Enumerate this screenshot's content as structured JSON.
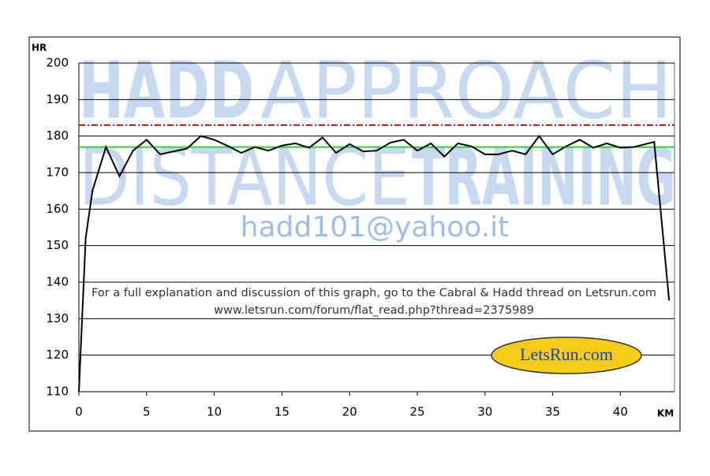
{
  "chart_data": {
    "type": "line",
    "y_label": "HR",
    "x_label": "KM",
    "x": [
      0,
      0.5,
      1,
      2,
      3,
      4,
      5,
      6,
      7,
      8,
      9,
      10,
      11,
      12,
      13,
      14,
      15,
      16,
      17,
      18,
      19,
      20,
      21,
      22,
      23,
      24,
      25,
      26,
      27,
      28,
      29,
      30,
      31,
      32,
      33,
      34,
      35,
      36,
      37,
      38,
      39,
      40,
      41,
      42.5,
      43.6
    ],
    "series": [
      {
        "color": "#000000",
        "values": [
          110,
          152,
          165,
          177,
          169,
          176,
          179,
          175,
          175.8,
          176.6,
          180,
          179,
          177.3,
          175.4,
          177,
          176,
          177.4,
          178,
          176.8,
          179.6,
          175.4,
          177.8,
          175.8,
          176,
          178.2,
          179,
          176,
          178,
          174.4,
          178,
          177.2,
          175,
          175,
          176,
          175,
          180,
          175,
          177.2,
          179,
          176.8,
          178,
          176.8,
          177,
          178.4,
          135
        ]
      }
    ],
    "reference_lines": [
      {
        "value": 183,
        "color": "#c00000",
        "style": "dashed"
      },
      {
        "value": 177,
        "color": "#33cc33",
        "style": "solid"
      }
    ],
    "xlim": [
      0,
      44
    ],
    "xticks": [
      0,
      5,
      10,
      15,
      20,
      25,
      30,
      35,
      40
    ],
    "ylim": [
      110,
      200
    ],
    "yticks": [
      110,
      120,
      130,
      140,
      150,
      160,
      170,
      180,
      190,
      200
    ],
    "grid": true,
    "watermark": {
      "line1_bold": "HADD",
      "line1": "APPROACH",
      "line2": "DISTANCE",
      "line2_bold": "TRAINING",
      "email": "hadd101@yahoo.it"
    },
    "annotations": [
      "For a full explanation and discussion of this graph, go to the Cabral & Hadd thread on Letsrun.com",
      "www.letsrun.com/forum/flat_read.php?thread=2375989"
    ],
    "logo": "LetsRun.com"
  }
}
